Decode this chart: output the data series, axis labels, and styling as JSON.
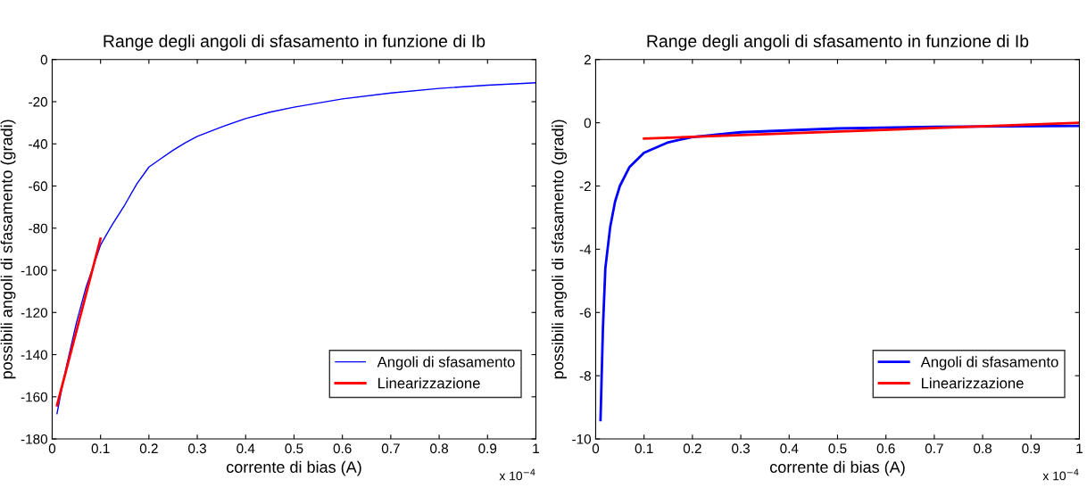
{
  "chart_data": [
    {
      "type": "line",
      "title": "Range degli angoli di sfasamento in funzione di Ib",
      "xlabel": "corrente di bias (A)",
      "ylabel": "possibili angoli di sfasamento (gradi)",
      "annotations": [
        "x 10$^{−4}$"
      ],
      "xlim": [
        0,
        1
      ],
      "xticks": [
        0,
        0.1,
        0.2,
        0.3,
        0.4,
        0.5,
        0.6,
        0.7,
        0.8,
        0.9,
        1
      ],
      "ylim": [
        -180,
        0
      ],
      "yticks": [
        -180,
        -160,
        -140,
        -120,
        -100,
        -80,
        -60,
        -40,
        -20,
        0
      ],
      "grid": false,
      "legend": "bottom right",
      "series": [
        {
          "name": "Angoli di sfasamento",
          "color": "#0000ff",
          "x": [
            0.01,
            0.02,
            0.03,
            0.05,
            0.07,
            0.1,
            0.125,
            0.15,
            0.175,
            0.2,
            0.225,
            0.25,
            0.275,
            0.3,
            0.35,
            0.4,
            0.45,
            0.5,
            0.6,
            0.7,
            0.8,
            0.9,
            1.0
          ],
          "values": [
            -168,
            -156,
            -145,
            -125,
            -108,
            -88,
            -78,
            -69,
            -59,
            -51,
            -47,
            -43,
            -39.5,
            -36.5,
            -32,
            -28,
            -25,
            -22.6,
            -18.7,
            -15.9,
            -13.7,
            -12.2,
            -11
          ]
        },
        {
          "name": "Linearizzazione",
          "color": "#ff0000",
          "x": [
            0.01,
            0.1
          ],
          "values": [
            -164,
            -85
          ]
        }
      ]
    },
    {
      "type": "line",
      "title": "Range degli angoli di sfasamento in funzione di Ib",
      "xlabel": "corrente di bias (A)",
      "ylabel": "possibili angoli di sfasamento (gradi)",
      "annotations": [
        "x 10$^{−4}$"
      ],
      "xlim": [
        0,
        1
      ],
      "xticks": [
        0,
        0.1,
        0.2,
        0.3,
        0.4,
        0.5,
        0.6,
        0.7,
        0.8,
        0.9,
        1
      ],
      "ylim": [
        -10,
        2
      ],
      "yticks": [
        -10,
        -8,
        -6,
        -4,
        -2,
        0,
        2
      ],
      "grid": false,
      "legend": "bottom right",
      "series": [
        {
          "name": "Angoli di sfasamento",
          "color": "#0000ff",
          "x": [
            0.01,
            0.015,
            0.02,
            0.03,
            0.04,
            0.05,
            0.07,
            0.1,
            0.15,
            0.2,
            0.3,
            0.5,
            0.7,
            1.0
          ],
          "values": [
            -9.4,
            -6.5,
            -4.6,
            -3.3,
            -2.5,
            -2.0,
            -1.4,
            -0.95,
            -0.62,
            -0.45,
            -0.3,
            -0.18,
            -0.13,
            -0.1
          ]
        },
        {
          "name": "Linearizzazione",
          "color": "#ff0000",
          "x": [
            0.1,
            1.0
          ],
          "values": [
            -0.5,
            0
          ]
        }
      ]
    }
  ]
}
